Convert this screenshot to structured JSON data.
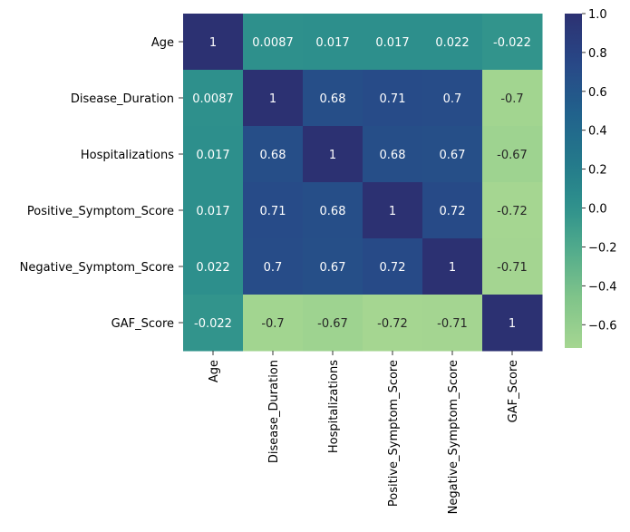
{
  "chart_data": {
    "type": "heatmap",
    "title": "",
    "xlabel": "",
    "ylabel": "",
    "rows": [
      "Age",
      "Disease_Duration",
      "Hospitalizations",
      "Positive_Symptom_Score",
      "Negative_Symptom_Score",
      "GAF_Score"
    ],
    "columns": [
      "Age",
      "Disease_Duration",
      "Hospitalizations",
      "Positive_Symptom_Score",
      "Negative_Symptom_Score",
      "GAF_Score"
    ],
    "values": [
      [
        1,
        0.0087,
        0.017,
        0.017,
        0.022,
        -0.022
      ],
      [
        0.0087,
        1,
        0.68,
        0.71,
        0.7,
        -0.7
      ],
      [
        0.017,
        0.68,
        1,
        0.68,
        0.67,
        -0.67
      ],
      [
        0.017,
        0.71,
        0.68,
        1,
        0.72,
        -0.72
      ],
      [
        0.022,
        0.7,
        0.67,
        0.72,
        1,
        -0.71
      ],
      [
        -0.022,
        -0.7,
        -0.67,
        -0.72,
        -0.71,
        1
      ]
    ],
    "annotations": [
      [
        "1",
        "0.0087",
        "0.017",
        "0.017",
        "0.022",
        "-0.022"
      ],
      [
        "0.0087",
        "1",
        "0.68",
        "0.71",
        "0.7",
        "-0.7"
      ],
      [
        "0.017",
        "0.68",
        "1",
        "0.68",
        "0.67",
        "-0.67"
      ],
      [
        "0.017",
        "0.71",
        "0.68",
        "1",
        "0.72",
        "-0.72"
      ],
      [
        "0.022",
        "0.7",
        "0.67",
        "0.72",
        "1",
        "-0.71"
      ],
      [
        "-0.022",
        "-0.7",
        "-0.67",
        "-0.72",
        "-0.71",
        "1"
      ]
    ],
    "colormap": "crest",
    "vmin": -0.72,
    "vmax": 1.0,
    "colorbar": {
      "ticks": [
        1.0,
        0.8,
        0.6,
        0.4,
        0.2,
        0.0,
        -0.2,
        -0.4,
        -0.6
      ],
      "tick_labels": [
        "1.0",
        "0.8",
        "0.6",
        "0.4",
        "0.2",
        "0.0",
        "−0.2",
        "−0.4",
        "−0.6"
      ],
      "placement": "right"
    },
    "colors": {
      "low": "#a5d691",
      "mid": "#2a8a8a",
      "high": "#2c3172"
    },
    "grid": false,
    "legend": "none"
  }
}
